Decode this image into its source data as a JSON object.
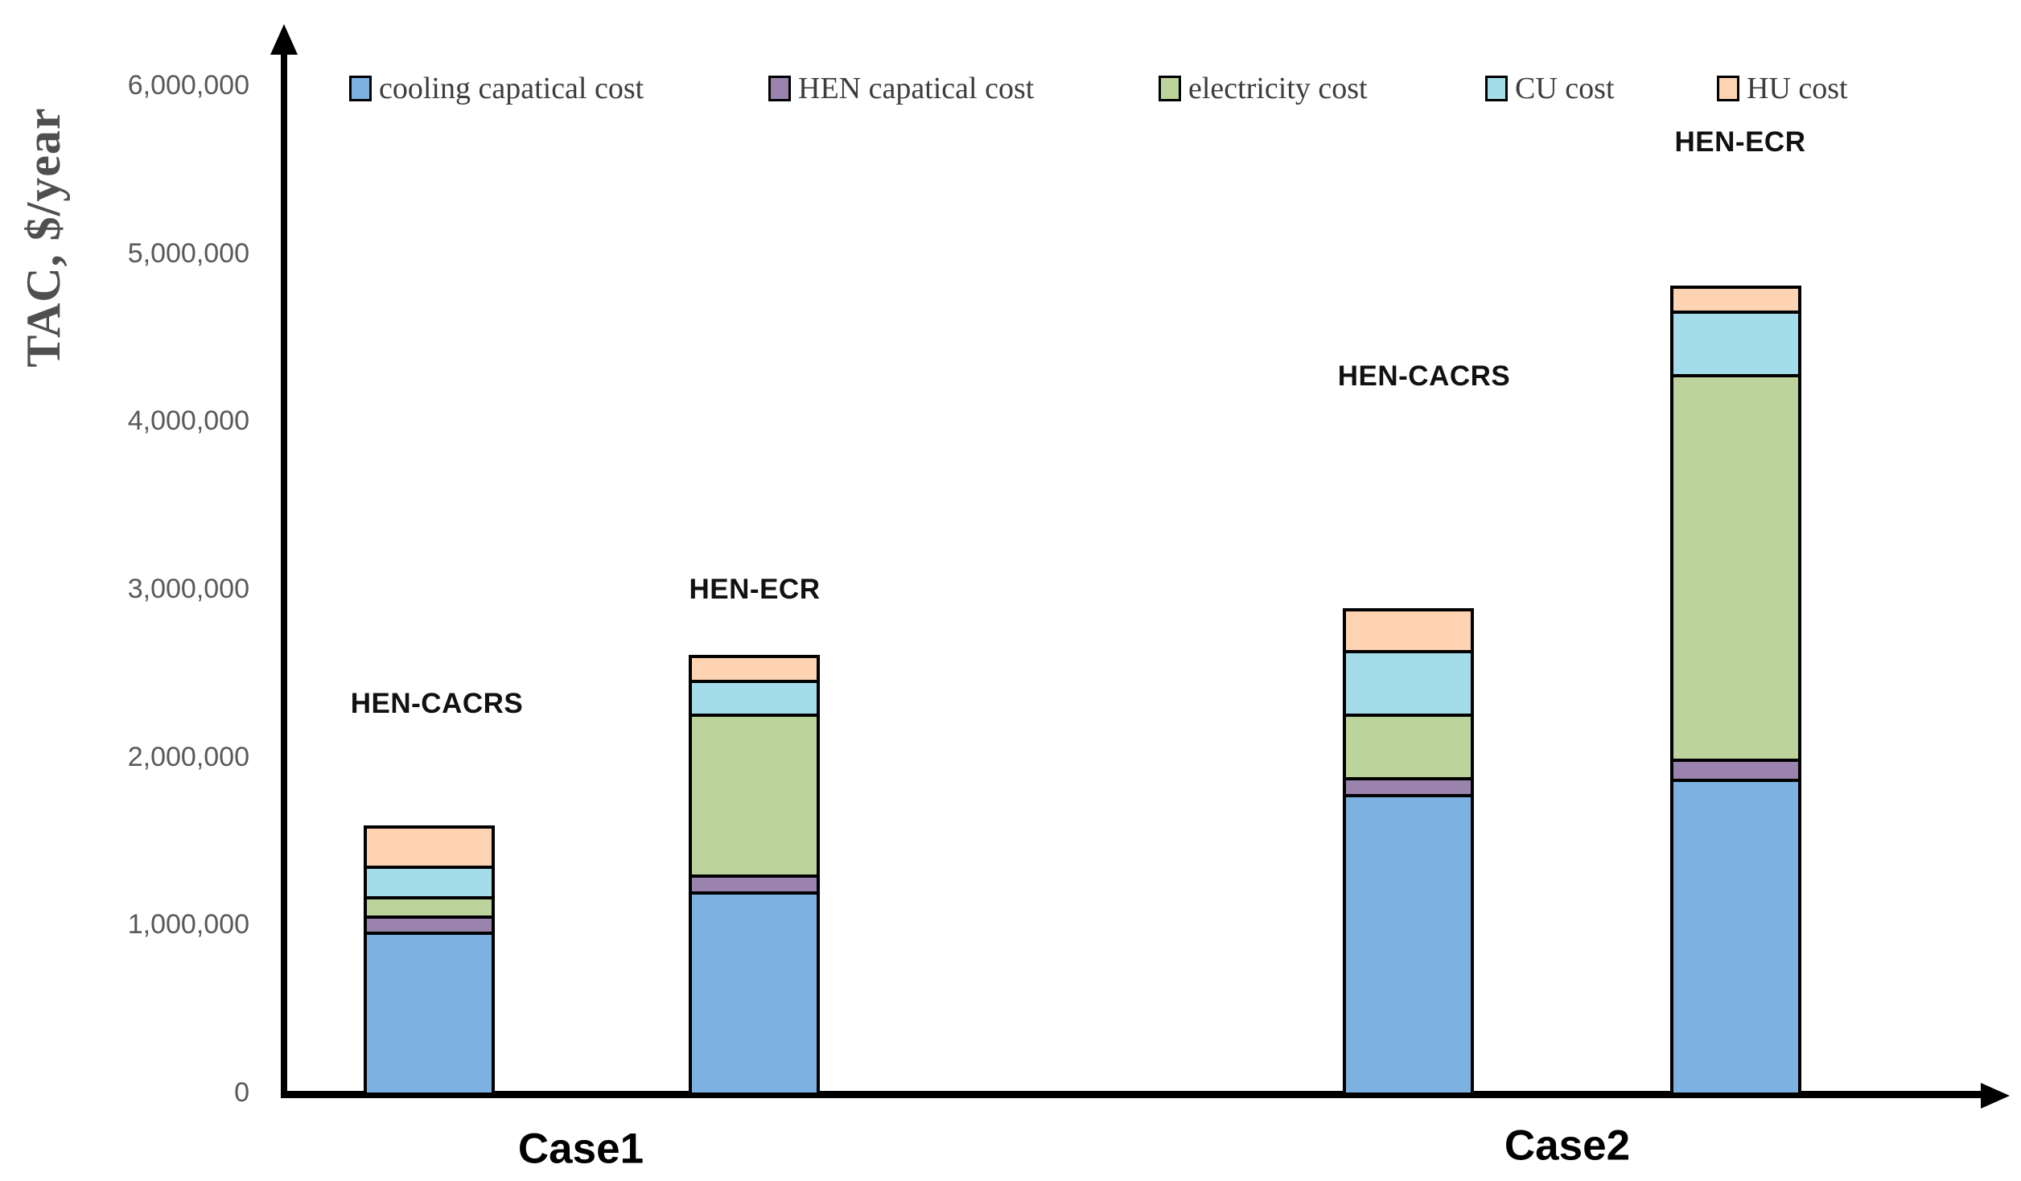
{
  "chart_data": {
    "type": "bar",
    "stacked": true,
    "title": "",
    "xlabel": "",
    "ylabel": "TAC, $/year",
    "ylim": [
      0,
      6200000
    ],
    "grid": false,
    "legend_position": "top",
    "y_ticks": [
      {
        "label": "6,000,000",
        "value": 6000000
      },
      {
        "label": "5,000,000",
        "value": 5000000
      },
      {
        "label": "4,000,000",
        "value": 4000000
      },
      {
        "label": "3,000,000",
        "value": 3000000
      },
      {
        "label": "2,000,000",
        "value": 2000000
      },
      {
        "label": "1,000,000",
        "value": 1000000
      },
      {
        "label": "0",
        "value": 0
      }
    ],
    "categories": [
      "Case1",
      "Case2"
    ],
    "bar_group_labels": [
      "HEN-CACRS",
      "HEN-ECR",
      "HEN-CACRS",
      "HEN-ECR"
    ],
    "series": [
      {
        "name": "cooling capatical cost",
        "color": "#7CB1E2",
        "values": [
          960000,
          1200000,
          1780000,
          1870000
        ]
      },
      {
        "name": "HEN capatical cost",
        "color": "#9A84AE",
        "values": [
          95000,
          100000,
          100000,
          120000
        ]
      },
      {
        "name": "electricity cost",
        "color": "#BCD49B",
        "values": [
          115000,
          960000,
          380000,
          2290000
        ]
      },
      {
        "name": "CU cost",
        "color": "#A5DCE9",
        "values": [
          180000,
          200000,
          380000,
          380000
        ]
      },
      {
        "name": "HU cost",
        "color": "#FDD3B1",
        "values": [
          240000,
          150000,
          250000,
          150000
        ]
      }
    ],
    "bar_totals": [
      1590000,
      2610000,
      2890000,
      4810000
    ],
    "colors": {
      "axis": "#000000",
      "tick_text": "#595959",
      "axis_title_text": "#4f4f4f",
      "legend_text": "#3d3d3d",
      "annotation_text": "#111111",
      "background": "#ffffff"
    }
  }
}
